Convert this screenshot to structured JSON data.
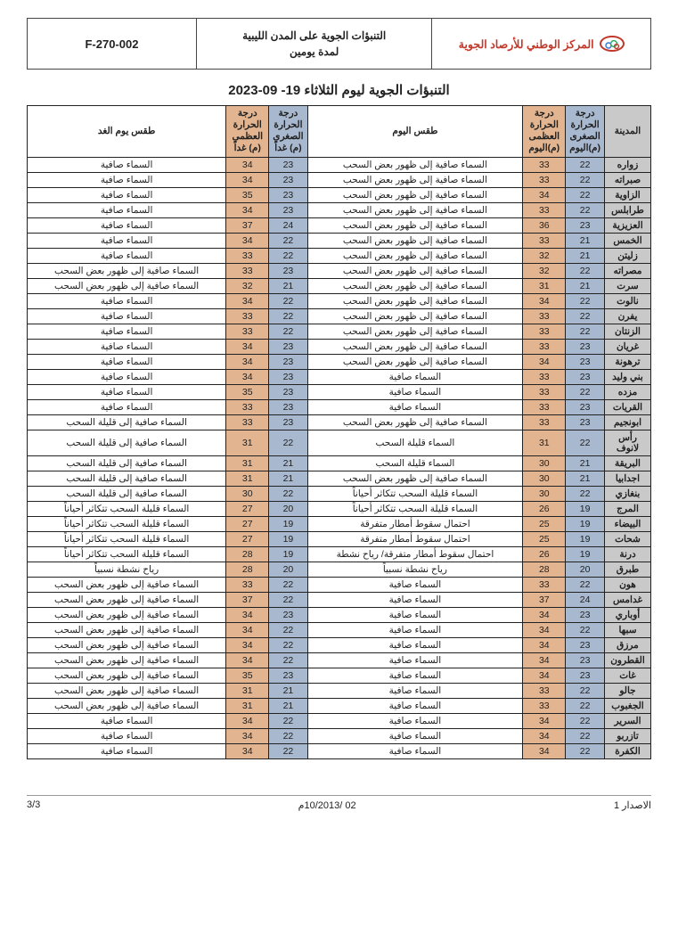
{
  "header": {
    "org": "المركز الوطني للأرصاد الجوية",
    "center_line1": "التنبؤات الجوية على المدن الليبية",
    "center_line2": "لمدة يومين",
    "code": "F-270-002"
  },
  "title": "التنبؤات الجوية ليوم الثلاثاء 19- 09-2023",
  "columns": {
    "city": "المدينة",
    "min_today": "درجة الحرارة الصغرى (م)اليوم",
    "max_today": "درجة الحرارة العظمى (م)اليوم",
    "weather_today": "طقس اليوم",
    "min_tmrw": "درجة الحرارة الصغرى (م) غداً",
    "max_tmrw": "درجة الحرارة العظمى (م) غداً",
    "weather_tmrw": "طقس يوم الغد"
  },
  "colors": {
    "city_bg": "#c9c9c9",
    "min_bg": "#a7b8cf",
    "max_bg": "#e2b48f",
    "border": "#222222",
    "org_text": "#c0392b"
  },
  "rows": [
    {
      "city": "زواره",
      "minT": 22,
      "maxT": 33,
      "wT": "السماء صافية إلى ظهور بعض السحب",
      "minN": 23,
      "maxN": 34,
      "wN": "السماء صافية"
    },
    {
      "city": "صبراته",
      "minT": 22,
      "maxT": 33,
      "wT": "السماء صافية إلى ظهور بعض السحب",
      "minN": 23,
      "maxN": 34,
      "wN": "السماء صافية"
    },
    {
      "city": "الزاوية",
      "minT": 22,
      "maxT": 34,
      "wT": "السماء صافية إلى ظهور بعض السحب",
      "minN": 23,
      "maxN": 35,
      "wN": "السماء صافية"
    },
    {
      "city": "طرابلس",
      "minT": 22,
      "maxT": 33,
      "wT": "السماء صافية إلى ظهور بعض السحب",
      "minN": 23,
      "maxN": 34,
      "wN": "السماء صافية"
    },
    {
      "city": "العزيزية",
      "minT": 23,
      "maxT": 36,
      "wT": "السماء صافية إلى ظهور بعض السحب",
      "minN": 24,
      "maxN": 37,
      "wN": "السماء صافية"
    },
    {
      "city": "الخمس",
      "minT": 21,
      "maxT": 33,
      "wT": "السماء صافية إلى ظهور بعض السحب",
      "minN": 22,
      "maxN": 34,
      "wN": "السماء صافية"
    },
    {
      "city": "زليتن",
      "minT": 21,
      "maxT": 32,
      "wT": "السماء صافية إلى ظهور بعض السحب",
      "minN": 22,
      "maxN": 33,
      "wN": "السماء صافية"
    },
    {
      "city": "مصراته",
      "minT": 22,
      "maxT": 32,
      "wT": "السماء صافية إلى ظهور بعض السحب",
      "minN": 23,
      "maxN": 33,
      "wN": "السماء صافية إلى ظهور بعض السحب"
    },
    {
      "city": "سرت",
      "minT": 21,
      "maxT": 31,
      "wT": "السماء صافية إلى ظهور بعض السحب",
      "minN": 21,
      "maxN": 32,
      "wN": "السماء صافية إلى ظهور بعض السحب"
    },
    {
      "city": "نالوت",
      "minT": 22,
      "maxT": 34,
      "wT": "السماء صافية إلى ظهور بعض السحب",
      "minN": 22,
      "maxN": 34,
      "wN": "السماء صافية"
    },
    {
      "city": "يفرن",
      "minT": 22,
      "maxT": 33,
      "wT": "السماء صافية إلى ظهور بعض السحب",
      "minN": 22,
      "maxN": 33,
      "wN": "السماء صافية"
    },
    {
      "city": "الزنتان",
      "minT": 22,
      "maxT": 33,
      "wT": "السماء صافية إلى ظهور بعض السحب",
      "minN": 22,
      "maxN": 33,
      "wN": "السماء صافية"
    },
    {
      "city": "غريان",
      "minT": 23,
      "maxT": 33,
      "wT": "السماء صافية إلى ظهور بعض السحب",
      "minN": 23,
      "maxN": 34,
      "wN": "السماء صافية"
    },
    {
      "city": "ترهونة",
      "minT": 23,
      "maxT": 34,
      "wT": "السماء صافية إلى ظهور بعض السحب",
      "minN": 23,
      "maxN": 34,
      "wN": "السماء صافية"
    },
    {
      "city": "بني وليد",
      "minT": 23,
      "maxT": 33,
      "wT": "السماء صافية",
      "minN": 23,
      "maxN": 34,
      "wN": "السماء صافية"
    },
    {
      "city": "مزده",
      "minT": 22,
      "maxT": 33,
      "wT": "السماء صافية",
      "minN": 23,
      "maxN": 35,
      "wN": "السماء صافية"
    },
    {
      "city": "القريات",
      "minT": 23,
      "maxT": 33,
      "wT": "السماء صافية",
      "minN": 23,
      "maxN": 33,
      "wN": "السماء صافية"
    },
    {
      "city": "ابونجيم",
      "minT": 23,
      "maxT": 33,
      "wT": "السماء صافية إلى ظهور بعض السحب",
      "minN": 23,
      "maxN": 33,
      "wN": "السماء صافية إلى قليلة السحب"
    },
    {
      "city": "رأس لانوف",
      "minT": 22,
      "maxT": 31,
      "wT": "السماء قليلة السحب",
      "minN": 22,
      "maxN": 31,
      "wN": "السماء صافية إلى قليلة السحب"
    },
    {
      "city": "البريقة",
      "minT": 21,
      "maxT": 30,
      "wT": "السماء قليلة السحب",
      "minN": 21,
      "maxN": 31,
      "wN": "السماء صافية إلى قليلة السحب"
    },
    {
      "city": "اجدابيا",
      "minT": 21,
      "maxT": 30,
      "wT": "السماء صافية إلى ظهور بعض السحب",
      "minN": 21,
      "maxN": 31,
      "wN": "السماء صافية إلى قليلة السحب"
    },
    {
      "city": "بنغازي",
      "minT": 22,
      "maxT": 30,
      "wT": "السماء قليلة السحب تتكاثر أحياناً",
      "minN": 22,
      "maxN": 30,
      "wN": "السماء صافية إلى قليلة السحب"
    },
    {
      "city": "المرج",
      "minT": 19,
      "maxT": 26,
      "wT": "السماء قليلة السحب تتكاثر أحياناً",
      "minN": 20,
      "maxN": 27,
      "wN": "السماء قليلة السحب تتكاثر أحياناً"
    },
    {
      "city": "البيضاء",
      "minT": 19,
      "maxT": 25,
      "wT": "احتمال سقوط أمطار متفرقة",
      "minN": 19,
      "maxN": 27,
      "wN": "السماء قليلة السحب تتكاثر أحياناً"
    },
    {
      "city": "شحات",
      "minT": 19,
      "maxT": 25,
      "wT": "احتمال سقوط أمطار متفرقة",
      "minN": 19,
      "maxN": 27,
      "wN": "السماء قليلة السحب تتكاثر أحياناً"
    },
    {
      "city": "درنة",
      "minT": 19,
      "maxT": 26,
      "wT": "احتمال سقوط أمطار متفرقة/ رياح نشطة",
      "minN": 19,
      "maxN": 28,
      "wN": "السماء قليلة السحب تتكاثر أحياناً"
    },
    {
      "city": "طبرق",
      "minT": 20,
      "maxT": 28,
      "wT": "رياح نشطة نسبياً",
      "minN": 20,
      "maxN": 28,
      "wN": "رياح نشطة نسبياً"
    },
    {
      "city": "هون",
      "minT": 22,
      "maxT": 33,
      "wT": "السماء صافية",
      "minN": 22,
      "maxN": 33,
      "wN": "السماء صافية إلى ظهور بعض السحب"
    },
    {
      "city": "غدامس",
      "minT": 24,
      "maxT": 37,
      "wT": "السماء صافية",
      "minN": 22,
      "maxN": 37,
      "wN": "السماء صافية إلى ظهور بعض السحب"
    },
    {
      "city": "أوباري",
      "minT": 23,
      "maxT": 34,
      "wT": "السماء صافية",
      "minN": 23,
      "maxN": 34,
      "wN": "السماء صافية إلى ظهور بعض السحب"
    },
    {
      "city": "سبها",
      "minT": 22,
      "maxT": 34,
      "wT": "السماء صافية",
      "minN": 22,
      "maxN": 34,
      "wN": "السماء صافية إلى ظهور بعض السحب"
    },
    {
      "city": "مرزق",
      "minT": 23,
      "maxT": 34,
      "wT": "السماء صافية",
      "minN": 22,
      "maxN": 34,
      "wN": "السماء صافية إلى ظهور بعض السحب"
    },
    {
      "city": "القطرون",
      "minT": 23,
      "maxT": 34,
      "wT": "السماء صافية",
      "minN": 22,
      "maxN": 34,
      "wN": "السماء صافية إلى ظهور بعض السحب"
    },
    {
      "city": "غات",
      "minT": 23,
      "maxT": 34,
      "wT": "السماء صافية",
      "minN": 23,
      "maxN": 35,
      "wN": "السماء صافية إلى ظهور بعض السحب"
    },
    {
      "city": "جالو",
      "minT": 22,
      "maxT": 33,
      "wT": "السماء صافية",
      "minN": 21,
      "maxN": 31,
      "wN": "السماء صافية إلى ظهور بعض السحب"
    },
    {
      "city": "الجغبوب",
      "minT": 22,
      "maxT": 33,
      "wT": "السماء صافية",
      "minN": 21,
      "maxN": 31,
      "wN": "السماء صافية إلى ظهور بعض السحب"
    },
    {
      "city": "السرير",
      "minT": 22,
      "maxT": 34,
      "wT": "السماء صافية",
      "minN": 22,
      "maxN": 34,
      "wN": "السماء صافية"
    },
    {
      "city": "تازربو",
      "minT": 22,
      "maxT": 34,
      "wT": "السماء صافية",
      "minN": 22,
      "maxN": 34,
      "wN": "السماء صافية"
    },
    {
      "city": "الكفرة",
      "minT": 22,
      "maxT": 34,
      "wT": "السماء صافية",
      "minN": 22,
      "maxN": 34,
      "wN": "السماء صافية"
    }
  ],
  "footer": {
    "issue": "الاصدار 1",
    "date": "02 /10/2013م",
    "page": "3/3"
  }
}
